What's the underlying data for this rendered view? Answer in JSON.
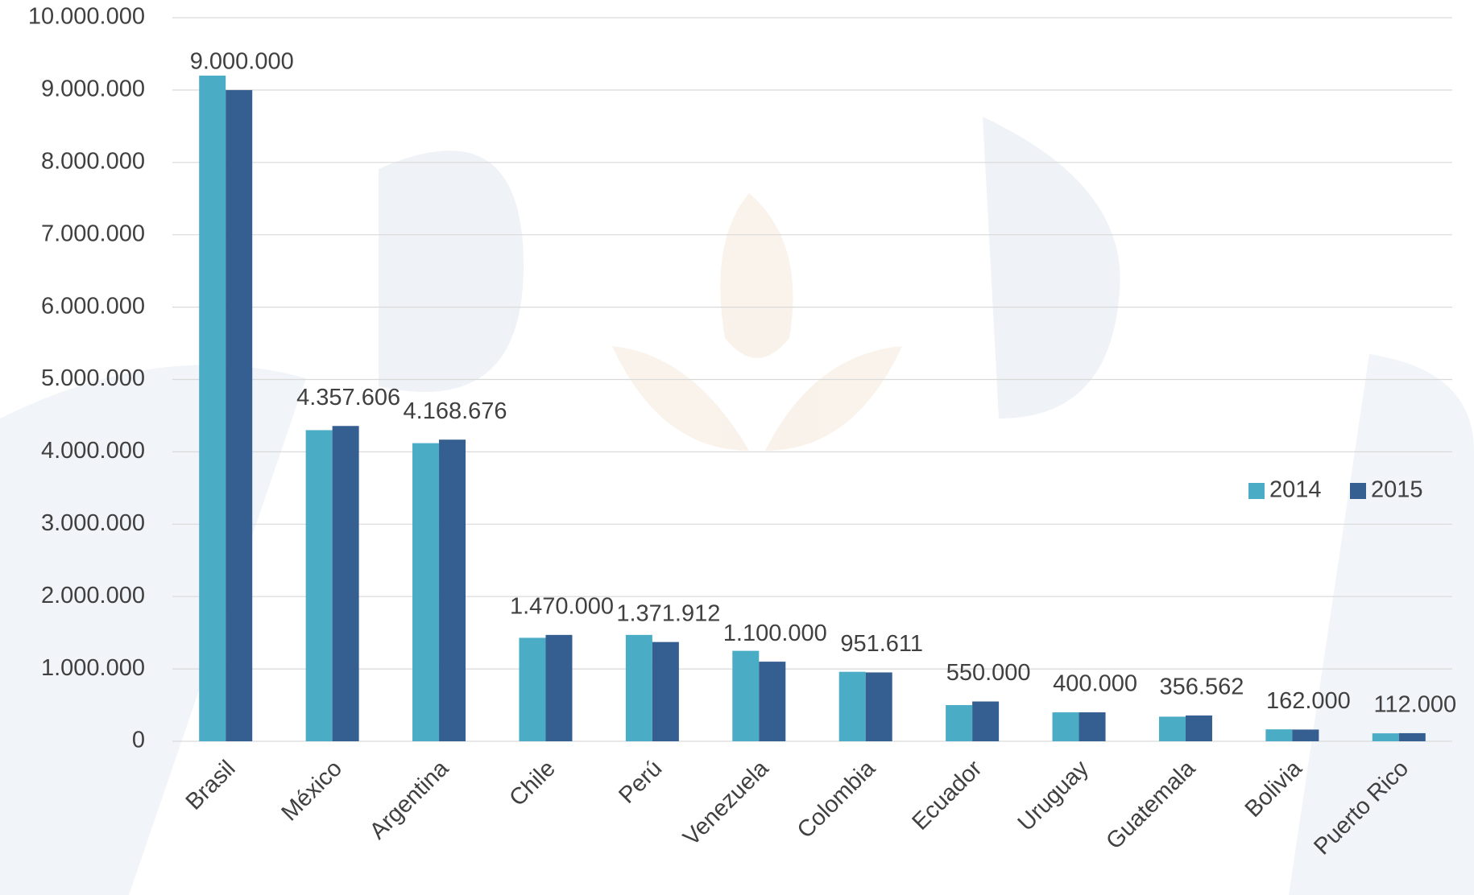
{
  "chart_data": {
    "type": "bar",
    "categories": [
      "Brasil",
      "México",
      "Argentina",
      "Chile",
      "Perú",
      "Venezuela",
      "Colombia",
      "Ecuador",
      "Uruguay",
      "Guatemala",
      "Bolivia",
      "Puerto Rico"
    ],
    "series": [
      {
        "name": "2014",
        "color": "#4bacc6",
        "values": [
          9200000,
          4300000,
          4120000,
          1430000,
          1470000,
          1250000,
          960000,
          500000,
          400000,
          340000,
          165000,
          110000
        ]
      },
      {
        "name": "2015",
        "color": "#355e91",
        "values": [
          9000000,
          4357606,
          4168676,
          1470000,
          1371912,
          1100000,
          951611,
          550000,
          400000,
          356562,
          162000,
          112000
        ],
        "value_labels": [
          "9.000.000",
          "4.357.606",
          "4.168.676",
          "1.470.000",
          "1.371.912",
          "1.100.000",
          "951.611",
          "550.000",
          "400.000",
          "356.562",
          "162.000",
          "112.000"
        ]
      }
    ],
    "ylim": [
      0,
      10000000
    ],
    "yticks": [
      0,
      {
        "value": 1000000,
        "label": "1.000.000"
      },
      {
        "value": 2000000,
        "label": "2.000.000"
      },
      {
        "value": 3000000,
        "label": "3.000.000"
      },
      {
        "value": 4000000,
        "label": "4.000.000"
      },
      {
        "value": 5000000,
        "label": "5.000.000"
      },
      {
        "value": 6000000,
        "label": "6.000.000"
      },
      {
        "value": 7000000,
        "label": "7.000.000"
      },
      {
        "value": 8000000,
        "label": "8.000.000"
      },
      {
        "value": 9000000,
        "label": "9.000.000"
      },
      {
        "value": 10000000,
        "label": "10.000.000"
      }
    ],
    "grid": true,
    "legend": "right"
  }
}
